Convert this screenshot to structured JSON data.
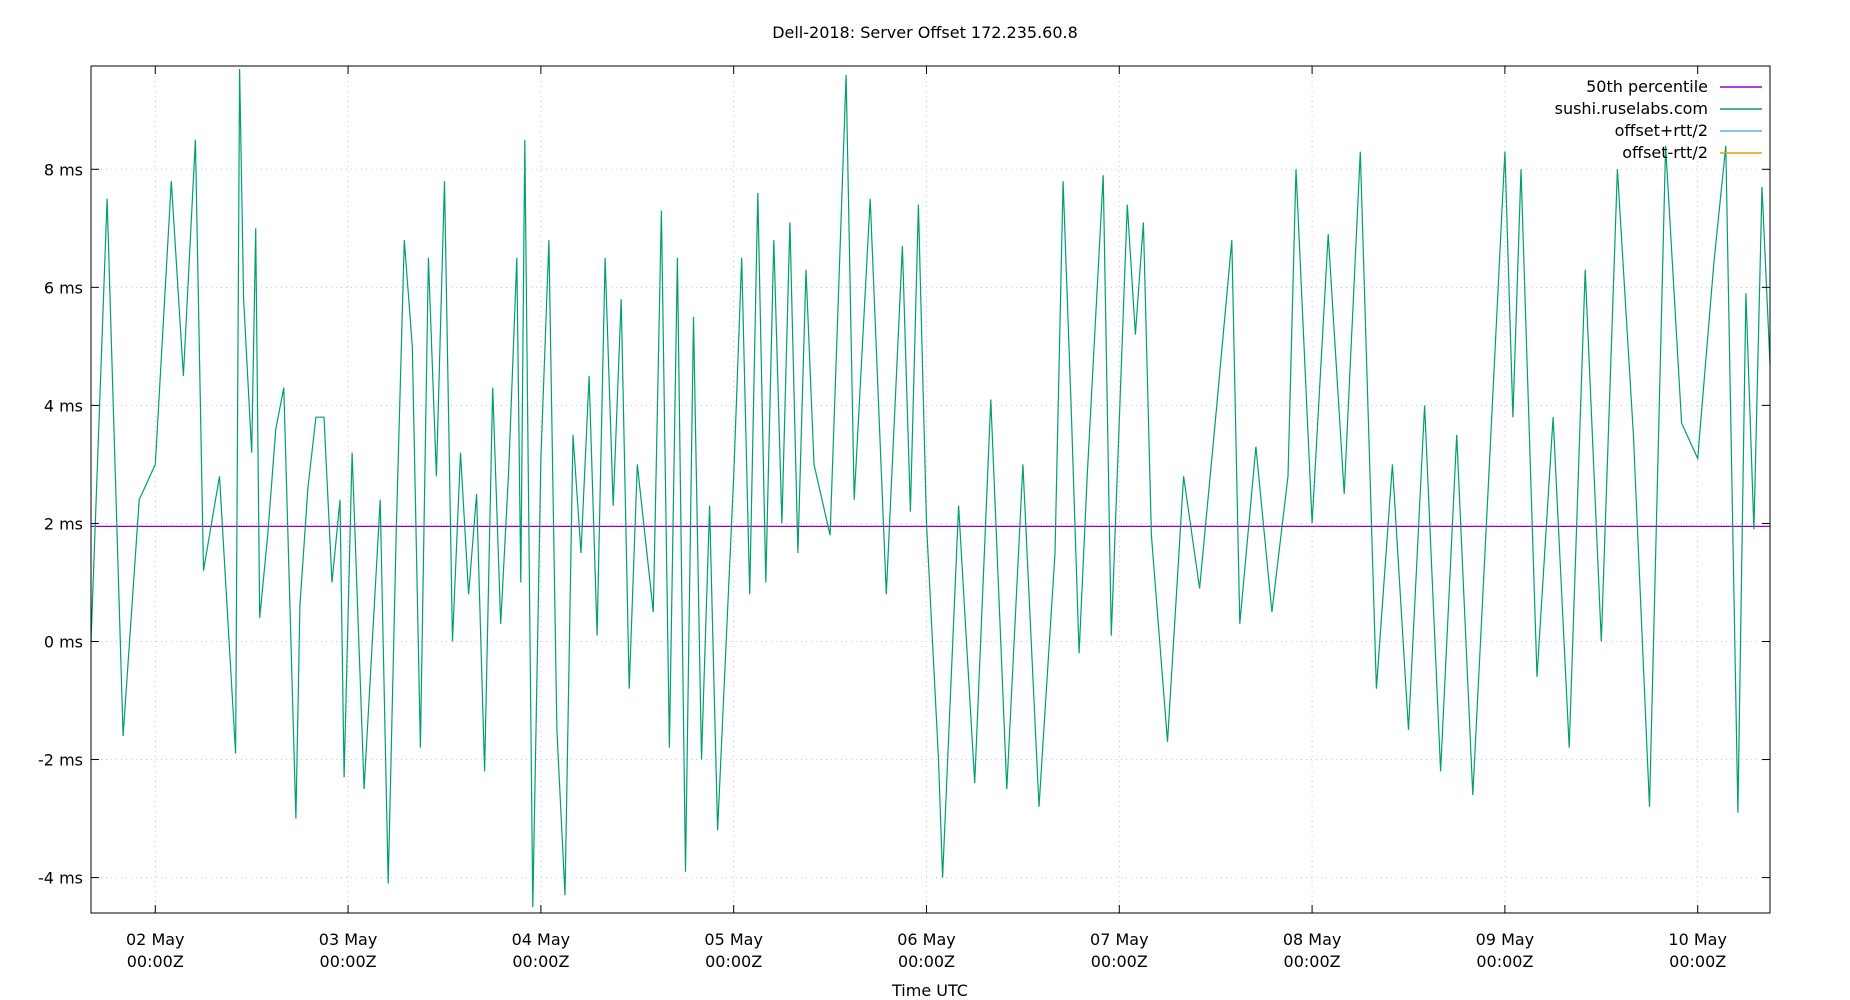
{
  "chart_data": {
    "type": "line",
    "title": "Dell-2018: Server Offset 172.235.60.8",
    "xlabel": "Time UTC",
    "ylabel": "",
    "x_range": [
      "2024-05-01T16:00:00Z",
      "2024-05-10T09:00:00Z"
    ],
    "xticks": [
      {
        "date": "2024-05-02T00:00:00Z",
        "line1": "02 May",
        "line2": "00:00Z"
      },
      {
        "date": "2024-05-03T00:00:00Z",
        "line1": "03 May",
        "line2": "00:00Z"
      },
      {
        "date": "2024-05-04T00:00:00Z",
        "line1": "04 May",
        "line2": "00:00Z"
      },
      {
        "date": "2024-05-05T00:00:00Z",
        "line1": "05 May",
        "line2": "00:00Z"
      },
      {
        "date": "2024-05-06T00:00:00Z",
        "line1": "06 May",
        "line2": "00:00Z"
      },
      {
        "date": "2024-05-07T00:00:00Z",
        "line1": "07 May",
        "line2": "00:00Z"
      },
      {
        "date": "2024-05-08T00:00:00Z",
        "line1": "08 May",
        "line2": "00:00Z"
      },
      {
        "date": "2024-05-09T00:00:00Z",
        "line1": "09 May",
        "line2": "00:00Z"
      },
      {
        "date": "2024-05-10T00:00:00Z",
        "line1": "10 May",
        "line2": "00:00Z"
      }
    ],
    "ylim": [
      -4.6,
      9.75
    ],
    "yticks": [
      {
        "value": -4,
        "label": "-4 ms"
      },
      {
        "value": -2,
        "label": "-2 ms"
      },
      {
        "value": 0,
        "label": "0 ms"
      },
      {
        "value": 2,
        "label": "2 ms"
      },
      {
        "value": 4,
        "label": "4 ms"
      },
      {
        "value": 6,
        "label": "6 ms"
      },
      {
        "value": 8,
        "label": "8 ms"
      }
    ],
    "grid": true,
    "legend_position": "top-right",
    "legend": [
      {
        "name": "50th percentile",
        "color": "#9400d3"
      },
      {
        "name": "sushi.ruselabs.com",
        "color": "#009e73"
      },
      {
        "name": "offset+rtt/2",
        "color": "#56b4e9"
      },
      {
        "name": "offset-rtt/2",
        "color": "#e69f00"
      }
    ],
    "series": [
      {
        "name": "50th percentile",
        "color": "#9400d3",
        "constant": 1.95
      },
      {
        "name": "sushi.ruselabs.com",
        "color": "#009e73",
        "points": [
          [
            "2024-05-01T16:00:00Z",
            0.0
          ],
          [
            "2024-05-01T18:00:00Z",
            7.5
          ],
          [
            "2024-05-01T20:00:00Z",
            -1.6
          ],
          [
            "2024-05-01T22:00:00Z",
            2.4
          ],
          [
            "2024-05-02T00:00:00Z",
            3.0
          ],
          [
            "2024-05-02T02:00:00Z",
            7.8
          ],
          [
            "2024-05-02T03:30:00Z",
            4.5
          ],
          [
            "2024-05-02T05:00:00Z",
            8.5
          ],
          [
            "2024-05-02T06:00:00Z",
            1.2
          ],
          [
            "2024-05-02T08:00:00Z",
            2.8
          ],
          [
            "2024-05-02T10:00:00Z",
            -1.9
          ],
          [
            "2024-05-02T12:00:00Z",
            3.2
          ],
          [
            "2024-05-02T14:00:00Z",
            1.8
          ],
          [
            "2024-05-02T16:00:00Z",
            4.3
          ],
          [
            "2024-05-02T18:00:00Z",
            0.6
          ],
          [
            "2024-05-02T20:00:00Z",
            3.8
          ],
          [
            "2024-05-02T22:00:00Z",
            1.0
          ],
          [
            "2024-05-02T23:00:00Z",
            2.4
          ],
          [
            "2024-05-02T10:30:00Z",
            9.7
          ],
          [
            "2024-05-02T11:00:00Z",
            5.8
          ],
          [
            "2024-05-02T12:30:00Z",
            7.0
          ],
          [
            "2024-05-02T13:00:00Z",
            0.4
          ],
          [
            "2024-05-02T15:00:00Z",
            3.6
          ],
          [
            "2024-05-02T17:30:00Z",
            -3.0
          ],
          [
            "2024-05-02T19:00:00Z",
            2.6
          ],
          [
            "2024-05-02T21:00:00Z",
            3.8
          ],
          [
            "2024-05-02T23:30:00Z",
            -2.3
          ],
          [
            "2024-05-03T00:30:00Z",
            3.2
          ],
          [
            "2024-05-03T02:00:00Z",
            -2.5
          ],
          [
            "2024-05-03T04:00:00Z",
            2.4
          ],
          [
            "2024-05-03T05:00:00Z",
            -4.1
          ],
          [
            "2024-05-03T06:00:00Z",
            1.9
          ],
          [
            "2024-05-03T07:00:00Z",
            6.8
          ],
          [
            "2024-05-03T08:00:00Z",
            5.0
          ],
          [
            "2024-05-03T09:00:00Z",
            -1.8
          ],
          [
            "2024-05-03T10:00:00Z",
            6.5
          ],
          [
            "2024-05-03T11:00:00Z",
            2.8
          ],
          [
            "2024-05-03T12:00:00Z",
            7.8
          ],
          [
            "2024-05-03T13:00:00Z",
            0.0
          ],
          [
            "2024-05-03T14:00:00Z",
            3.2
          ],
          [
            "2024-05-03T15:00:00Z",
            0.8
          ],
          [
            "2024-05-03T16:00:00Z",
            2.5
          ],
          [
            "2024-05-03T17:00:00Z",
            -2.2
          ],
          [
            "2024-05-03T18:00:00Z",
            4.3
          ],
          [
            "2024-05-03T19:00:00Z",
            0.3
          ],
          [
            "2024-05-03T20:00:00Z",
            2.9
          ],
          [
            "2024-05-03T21:00:00Z",
            6.5
          ],
          [
            "2024-05-03T21:30:00Z",
            1.0
          ],
          [
            "2024-05-03T22:00:00Z",
            8.5
          ],
          [
            "2024-05-03T23:00:00Z",
            -4.5
          ],
          [
            "2024-05-04T00:00:00Z",
            3.1
          ],
          [
            "2024-05-04T01:00:00Z",
            6.8
          ],
          [
            "2024-05-04T02:00:00Z",
            -1.5
          ],
          [
            "2024-05-04T03:00:00Z",
            -4.3
          ],
          [
            "2024-05-04T04:00:00Z",
            3.5
          ],
          [
            "2024-05-04T05:00:00Z",
            1.5
          ],
          [
            "2024-05-04T06:00:00Z",
            4.5
          ],
          [
            "2024-05-04T07:00:00Z",
            0.1
          ],
          [
            "2024-05-04T08:00:00Z",
            6.5
          ],
          [
            "2024-05-04T09:00:00Z",
            2.3
          ],
          [
            "2024-05-04T10:00:00Z",
            5.8
          ],
          [
            "2024-05-04T11:00:00Z",
            -0.8
          ],
          [
            "2024-05-04T12:00:00Z",
            3.0
          ],
          [
            "2024-05-04T14:00:00Z",
            0.5
          ],
          [
            "2024-05-04T15:00:00Z",
            7.3
          ],
          [
            "2024-05-04T16:00:00Z",
            -1.8
          ],
          [
            "2024-05-04T17:00:00Z",
            6.5
          ],
          [
            "2024-05-04T18:00:00Z",
            -3.9
          ],
          [
            "2024-05-04T19:00:00Z",
            5.5
          ],
          [
            "2024-05-04T20:00:00Z",
            -2.0
          ],
          [
            "2024-05-04T21:00:00Z",
            2.3
          ],
          [
            "2024-05-04T22:00:00Z",
            -3.2
          ],
          [
            "2024-05-05T00:00:00Z",
            2.8
          ],
          [
            "2024-05-05T01:00:00Z",
            6.5
          ],
          [
            "2024-05-05T02:00:00Z",
            0.8
          ],
          [
            "2024-05-05T03:00:00Z",
            7.6
          ],
          [
            "2024-05-05T04:00:00Z",
            1.0
          ],
          [
            "2024-05-05T05:00:00Z",
            6.8
          ],
          [
            "2024-05-05T06:00:00Z",
            2.0
          ],
          [
            "2024-05-05T07:00:00Z",
            7.1
          ],
          [
            "2024-05-05T08:00:00Z",
            1.5
          ],
          [
            "2024-05-05T09:00:00Z",
            6.3
          ],
          [
            "2024-05-05T10:00:00Z",
            3.0
          ],
          [
            "2024-05-05T12:00:00Z",
            1.8
          ],
          [
            "2024-05-05T14:00:00Z",
            9.6
          ],
          [
            "2024-05-05T15:00:00Z",
            2.4
          ],
          [
            "2024-05-05T17:00:00Z",
            7.5
          ],
          [
            "2024-05-05T19:00:00Z",
            0.8
          ],
          [
            "2024-05-05T21:00:00Z",
            6.7
          ],
          [
            "2024-05-05T22:00:00Z",
            2.2
          ],
          [
            "2024-05-05T23:00:00Z",
            7.4
          ],
          [
            "2024-05-06T00:00:00Z",
            2.0
          ],
          [
            "2024-05-06T01:30:00Z",
            -2.0
          ],
          [
            "2024-05-06T02:00:00Z",
            -4.0
          ],
          [
            "2024-05-06T04:00:00Z",
            2.3
          ],
          [
            "2024-05-06T06:00:00Z",
            -2.4
          ],
          [
            "2024-05-06T08:00:00Z",
            4.1
          ],
          [
            "2024-05-06T10:00:00Z",
            -2.5
          ],
          [
            "2024-05-06T12:00:00Z",
            3.0
          ],
          [
            "2024-05-06T14:00:00Z",
            -2.8
          ],
          [
            "2024-05-06T16:00:00Z",
            1.5
          ],
          [
            "2024-05-06T17:00:00Z",
            7.8
          ],
          [
            "2024-05-06T18:00:00Z",
            4.0
          ],
          [
            "2024-05-06T19:00:00Z",
            -0.2
          ],
          [
            "2024-05-06T20:00:00Z",
            2.8
          ],
          [
            "2024-05-06T22:00:00Z",
            7.9
          ],
          [
            "2024-05-06T23:00:00Z",
            0.1
          ],
          [
            "2024-05-07T01:00:00Z",
            7.4
          ],
          [
            "2024-05-07T02:00:00Z",
            5.2
          ],
          [
            "2024-05-07T03:00:00Z",
            7.1
          ],
          [
            "2024-05-07T04:00:00Z",
            1.8
          ],
          [
            "2024-05-07T06:00:00Z",
            -1.7
          ],
          [
            "2024-05-07T08:00:00Z",
            2.8
          ],
          [
            "2024-05-07T10:00:00Z",
            0.9
          ],
          [
            "2024-05-07T12:00:00Z",
            3.8
          ],
          [
            "2024-05-07T14:00:00Z",
            6.8
          ],
          [
            "2024-05-07T15:00:00Z",
            0.3
          ],
          [
            "2024-05-07T17:00:00Z",
            3.3
          ],
          [
            "2024-05-07T19:00:00Z",
            0.5
          ],
          [
            "2024-05-07T21:00:00Z",
            2.8
          ],
          [
            "2024-05-07T22:00:00Z",
            8.0
          ],
          [
            "2024-05-08T00:00:00Z",
            2.0
          ],
          [
            "2024-05-08T02:00:00Z",
            6.9
          ],
          [
            "2024-05-08T04:00:00Z",
            2.5
          ],
          [
            "2024-05-08T06:00:00Z",
            8.3
          ],
          [
            "2024-05-08T08:00:00Z",
            -0.8
          ],
          [
            "2024-05-08T10:00:00Z",
            3.0
          ],
          [
            "2024-05-08T12:00:00Z",
            -1.5
          ],
          [
            "2024-05-08T14:00:00Z",
            4.0
          ],
          [
            "2024-05-08T16:00:00Z",
            -2.2
          ],
          [
            "2024-05-08T18:00:00Z",
            3.5
          ],
          [
            "2024-05-08T20:00:00Z",
            -2.6
          ],
          [
            "2024-05-08T22:00:00Z",
            2.8
          ],
          [
            "2024-05-09T00:00:00Z",
            8.3
          ],
          [
            "2024-05-09T01:00:00Z",
            3.8
          ],
          [
            "2024-05-09T02:00:00Z",
            8.0
          ],
          [
            "2024-05-09T04:00:00Z",
            -0.6
          ],
          [
            "2024-05-09T06:00:00Z",
            3.8
          ],
          [
            "2024-05-09T08:00:00Z",
            -1.8
          ],
          [
            "2024-05-09T10:00:00Z",
            6.3
          ],
          [
            "2024-05-09T12:00:00Z",
            0.0
          ],
          [
            "2024-05-09T14:00:00Z",
            8.0
          ],
          [
            "2024-05-09T16:00:00Z",
            3.5
          ],
          [
            "2024-05-09T18:00:00Z",
            -2.8
          ],
          [
            "2024-05-09T20:00:00Z",
            8.4
          ],
          [
            "2024-05-09T22:00:00Z",
            3.7
          ],
          [
            "2024-05-10T00:00:00Z",
            3.1
          ],
          [
            "2024-05-10T02:00:00Z",
            6.4
          ],
          [
            "2024-05-10T03:30:00Z",
            8.4
          ],
          [
            "2024-05-10T05:00:00Z",
            -2.9
          ],
          [
            "2024-05-10T06:00:00Z",
            5.9
          ],
          [
            "2024-05-10T07:00:00Z",
            1.9
          ],
          [
            "2024-05-10T08:00:00Z",
            7.7
          ],
          [
            "2024-05-10T09:00:00Z",
            4.7
          ]
        ]
      },
      {
        "name": "offset+rtt/2",
        "color": "#56b4e9",
        "points": []
      },
      {
        "name": "offset-rtt/2",
        "color": "#e69f00",
        "points": []
      }
    ]
  }
}
